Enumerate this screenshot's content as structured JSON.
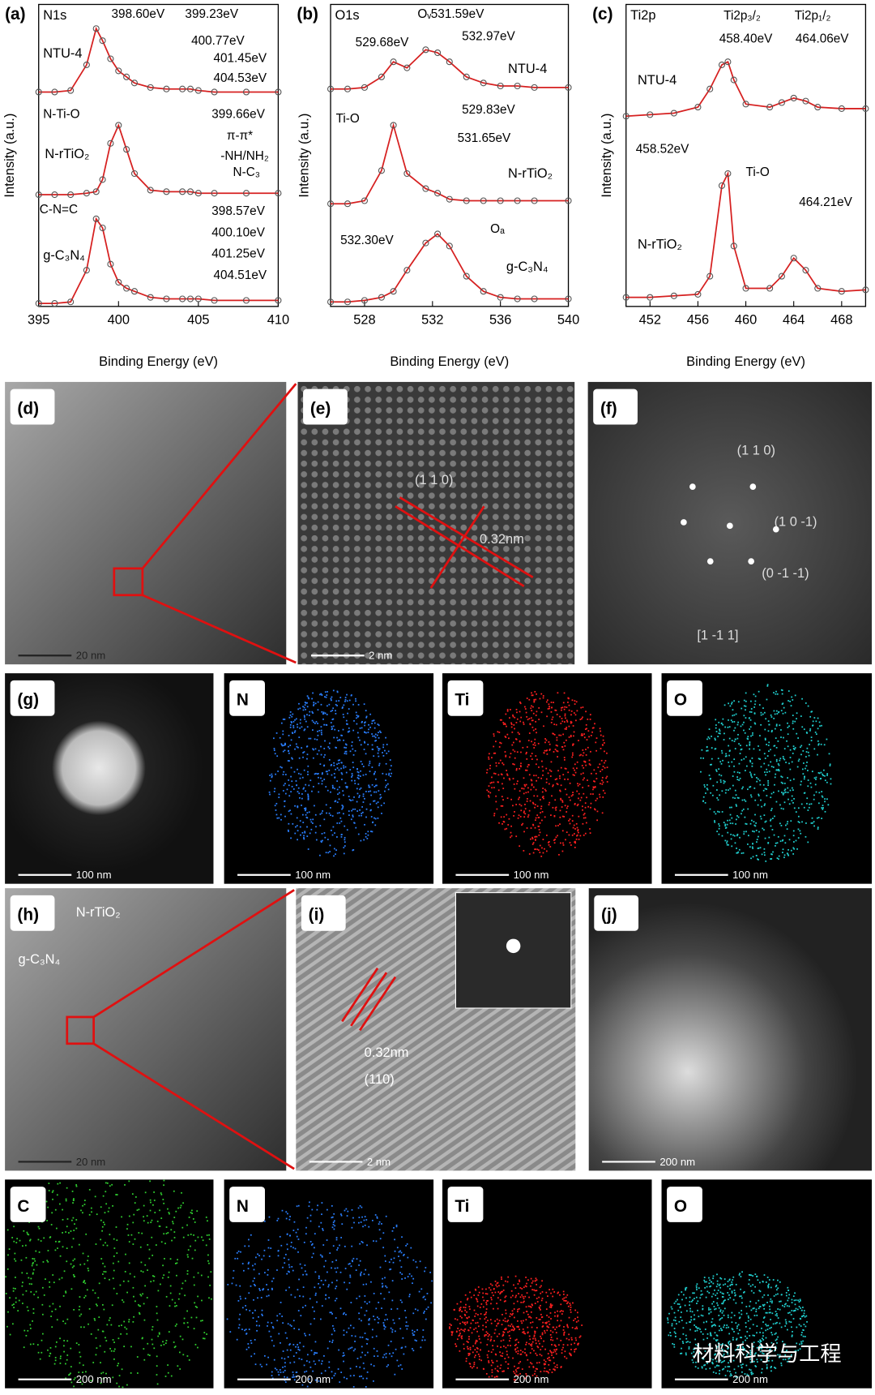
{
  "chart_data": [
    {
      "type": "line",
      "panel_label": "(a)",
      "element": "N1s",
      "xlabel": "Binding Energy (eV)",
      "ylabel": "Intensity (a.u.)",
      "xlim": [
        395,
        410
      ],
      "xticks": [
        395,
        400,
        405,
        410
      ],
      "ylim": [
        0,
        100
      ],
      "x": [
        395,
        396,
        397,
        398,
        398.6,
        399,
        399.5,
        400,
        400.5,
        401,
        402,
        403,
        404,
        404.5,
        405,
        406,
        408,
        410
      ],
      "series": [
        {
          "name": "NTU-4",
          "color": "#d62020",
          "values": [
            71,
            71,
            71.5,
            80,
            92,
            88,
            82,
            78,
            76,
            74,
            72.5,
            72,
            72,
            72,
            71.5,
            71,
            71,
            71
          ]
        },
        {
          "name": "N-rTiO₂",
          "color": "#d62020",
          "values": [
            37,
            37,
            37,
            37.5,
            38,
            42,
            54,
            60,
            52,
            44,
            38.5,
            38,
            38,
            38,
            37.5,
            37.5,
            37.5,
            37.5
          ]
        },
        {
          "name": "g-C₃N₄",
          "color": "#d62020",
          "values": [
            1,
            1,
            1.5,
            12,
            29,
            26,
            14,
            8,
            6,
            5,
            3,
            2.5,
            2.5,
            2.5,
            2.5,
            2,
            2,
            2
          ]
        }
      ],
      "annotations": [
        "398.60eV",
        "399.23eV",
        "400.77eV",
        "401.45eV",
        "404.53eV",
        "N-Ti-O",
        "399.66eV",
        "π-π*",
        "-NH/NH₂",
        "N-C₃",
        "C-N=C",
        "398.57eV",
        "400.10eV",
        "401.25eV",
        "404.51eV"
      ]
    },
    {
      "type": "line",
      "panel_label": "(b)",
      "element": "O1s",
      "xlabel": "Binding Energy (eV)",
      "ylabel": "Intensity (a.u.)",
      "xlim": [
        526,
        540
      ],
      "xticks": [
        528,
        532,
        536,
        540
      ],
      "ylim": [
        0,
        100
      ],
      "x": [
        526,
        527,
        528,
        529,
        529.7,
        530.5,
        531.6,
        532.3,
        533,
        534,
        535,
        536,
        537,
        538,
        540
      ],
      "series": [
        {
          "name": "NTU-4",
          "color": "#d62020",
          "values": [
            72,
            72,
            72.5,
            76,
            81,
            79,
            85,
            84,
            81,
            76,
            74,
            73,
            73,
            72.5,
            72.5
          ]
        },
        {
          "name": "N-rTiO₂",
          "color": "#d62020",
          "values": [
            34,
            34,
            35,
            45,
            60,
            44,
            39,
            37.5,
            35.5,
            35,
            35,
            35,
            35,
            35,
            35
          ]
        },
        {
          "name": "g-C₃N₄",
          "color": "#d62020",
          "values": [
            1.5,
            1.5,
            2,
            3,
            5,
            12,
            21,
            24,
            20,
            10,
            5,
            3,
            2.5,
            2.5,
            2.5
          ]
        }
      ],
      "annotations": [
        "Oᵥ",
        "531.59eV",
        "529.68eV",
        "532.97eV",
        "Ti-O",
        "529.83eV",
        "531.65eV",
        "Oₐ",
        "532.30eV"
      ]
    },
    {
      "type": "line",
      "panel_label": "(c)",
      "element": "Ti2p",
      "xlabel": "Binding Energy (eV)",
      "ylabel": "Intensity (a.u.)",
      "xlim": [
        450,
        470
      ],
      "xticks": [
        452,
        456,
        460,
        464,
        468
      ],
      "ylim": [
        0,
        100
      ],
      "x": [
        450,
        452,
        454,
        456,
        457,
        458,
        458.5,
        459,
        460,
        462,
        463,
        464,
        465,
        466,
        468,
        470
      ],
      "series": [
        {
          "name": "NTU-4",
          "color": "#d62020",
          "values": [
            63,
            63.5,
            64,
            66,
            72,
            80,
            81,
            75,
            67,
            66,
            67.5,
            69,
            68,
            66,
            65.5,
            65.5
          ]
        },
        {
          "name": "N-rTiO₂",
          "color": "#d62020",
          "values": [
            3,
            3,
            3.5,
            4,
            10,
            40,
            44,
            20,
            6,
            6,
            10,
            16,
            12,
            6,
            5,
            5.5
          ]
        }
      ],
      "annotations": [
        "Ti2p₃/₂",
        "Ti2p₁/₂",
        "458.40eV",
        "464.06eV",
        "458.52eV",
        "Ti-O",
        "464.21eV"
      ]
    }
  ],
  "panels": [
    {
      "label": "(d)",
      "scale_bar": "20 nm"
    },
    {
      "label": "(e)",
      "scale_bar": "2 nm",
      "texts": [
        "(1 1 0)",
        "0.32nm"
      ]
    },
    {
      "label": "(f)",
      "texts": [
        "(1 1 0)",
        "(1 0 -1)",
        "(0 -1 -1)",
        "[1 -1 1]"
      ]
    },
    {
      "label": "(g)",
      "scale_bar": "100 nm"
    },
    {
      "label": "N",
      "scale_bar": "100 nm"
    },
    {
      "label": "Ti",
      "scale_bar": "100 nm"
    },
    {
      "label": "O",
      "scale_bar": "100 nm"
    },
    {
      "label": "(h)",
      "scale_bar": "20 nm",
      "texts": [
        "N-rTiO₂",
        "g-C₃N₄"
      ]
    },
    {
      "label": "(i)",
      "scale_bar": "2 nm",
      "texts": [
        "0.32nm",
        "(110)"
      ]
    },
    {
      "label": "(j)",
      "scale_bar": "200 nm"
    },
    {
      "label": "C",
      "scale_bar": "200 nm"
    },
    {
      "label": "N",
      "scale_bar": "200 nm"
    },
    {
      "label": "Ti",
      "scale_bar": "200 nm"
    },
    {
      "label": "O",
      "scale_bar": "200 nm"
    }
  ],
  "watermark": "材料科学与工程"
}
